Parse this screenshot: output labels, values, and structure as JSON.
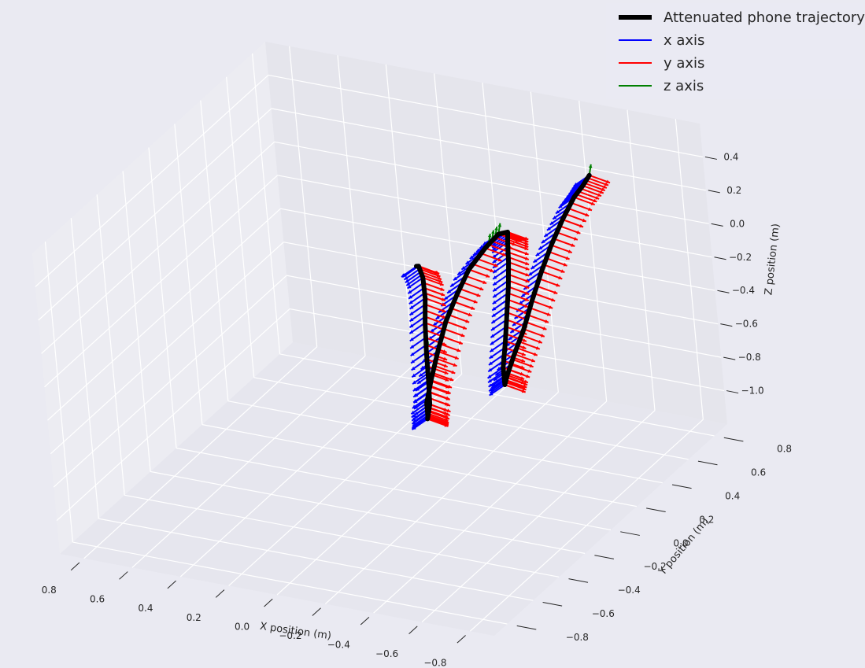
{
  "chart_data": {
    "type": "line",
    "projection": "3d",
    "title": "",
    "xlabel": "X position (m)",
    "ylabel": "Y position (m)",
    "zlabel": "Z position (m)",
    "xlim": [
      -0.9,
      0.9
    ],
    "ylim": [
      -0.9,
      0.9
    ],
    "zlim": [
      -1.2,
      0.6
    ],
    "x_ticks": [
      "0.8",
      "0.6",
      "0.4",
      "0.2",
      "0.0",
      "−0.2",
      "−0.4",
      "−0.6",
      "−0.8"
    ],
    "y_ticks": [
      "−0.8",
      "−0.6",
      "−0.4",
      "−0.2",
      "0.0",
      "0.2",
      "0.4",
      "0.6",
      "0.8"
    ],
    "z_ticks": [
      "0.4",
      "0.2",
      "0.0",
      "−0.2",
      "−0.4",
      "−0.6",
      "−0.8",
      "−1.0"
    ],
    "grid": true,
    "legend_position": "top-right",
    "legend": [
      {
        "label": "Attenuated phone trajectory",
        "color": "#000000"
      },
      {
        "label": "x axis",
        "color": "#0000ff"
      },
      {
        "label": "y axis",
        "color": "#ff0000"
      },
      {
        "label": "z axis",
        "color": "#008000"
      }
    ],
    "series": [
      {
        "name": "Attenuated phone trajectory",
        "color": "#000000",
        "points": [
          {
            "x": -0.58,
            "y": 0.62,
            "z": 0.4
          },
          {
            "x": -0.59,
            "y": 0.55,
            "z": 0.39
          },
          {
            "x": -0.59,
            "y": 0.48,
            "z": 0.37
          },
          {
            "x": -0.58,
            "y": 0.4,
            "z": 0.29
          },
          {
            "x": -0.57,
            "y": 0.32,
            "z": 0.19
          },
          {
            "x": -0.56,
            "y": 0.25,
            "z": 0.08
          },
          {
            "x": -0.55,
            "y": 0.18,
            "z": -0.05
          },
          {
            "x": -0.54,
            "y": 0.12,
            "z": -0.18
          },
          {
            "x": -0.52,
            "y": 0.07,
            "z": -0.3
          },
          {
            "x": -0.5,
            "y": 0.04,
            "z": -0.41
          },
          {
            "x": -0.48,
            "y": 0.05,
            "z": -0.48
          },
          {
            "x": -0.45,
            "y": 0.1,
            "z": -0.42
          },
          {
            "x": -0.44,
            "y": 0.15,
            "z": -0.3
          },
          {
            "x": -0.44,
            "y": 0.18,
            "z": -0.15
          },
          {
            "x": -0.45,
            "y": 0.19,
            "z": 0.0
          },
          {
            "x": -0.46,
            "y": 0.19,
            "z": 0.15
          },
          {
            "x": -0.47,
            "y": 0.18,
            "z": 0.28
          },
          {
            "x": -0.48,
            "y": 0.17,
            "z": 0.35
          },
          {
            "x": -0.47,
            "y": 0.12,
            "z": 0.37
          },
          {
            "x": -0.45,
            "y": 0.05,
            "z": 0.33
          },
          {
            "x": -0.42,
            "y": -0.03,
            "z": 0.25
          },
          {
            "x": -0.4,
            "y": -0.1,
            "z": 0.14
          },
          {
            "x": -0.38,
            "y": -0.16,
            "z": 0.02
          },
          {
            "x": -0.37,
            "y": -0.22,
            "z": -0.12
          },
          {
            "x": -0.36,
            "y": -0.27,
            "z": -0.26
          },
          {
            "x": -0.35,
            "y": -0.3,
            "z": -0.38
          },
          {
            "x": -0.35,
            "y": -0.3,
            "z": -0.46
          },
          {
            "x": -0.33,
            "y": -0.27,
            "z": -0.5
          },
          {
            "x": -0.31,
            "y": -0.21,
            "z": -0.46
          },
          {
            "x": -0.29,
            "y": -0.17,
            "z": -0.35
          },
          {
            "x": -0.28,
            "y": -0.15,
            "z": -0.2
          },
          {
            "x": -0.28,
            "y": -0.14,
            "z": -0.03
          },
          {
            "x": -0.29,
            "y": -0.14,
            "z": 0.12
          },
          {
            "x": -0.3,
            "y": -0.16,
            "z": 0.26
          },
          {
            "x": -0.31,
            "y": -0.2,
            "z": 0.36
          },
          {
            "x": -0.33,
            "y": -0.25,
            "z": 0.4
          }
        ]
      }
    ],
    "orientation_arrows": "x axis, y axis and z axis arrows drawn at each trajectory sample"
  }
}
